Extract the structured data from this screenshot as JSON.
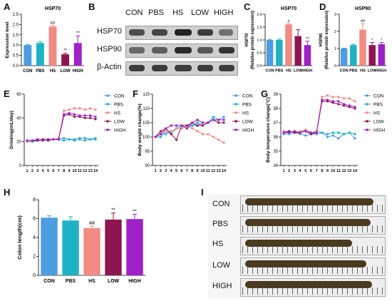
{
  "letters": {
    "A": "A",
    "B": "B",
    "C": "C",
    "D": "D",
    "E": "E",
    "F": "F",
    "G": "G",
    "H": "H",
    "I": "I"
  },
  "group_names": [
    "CON",
    "PBS",
    "HS",
    "LOW",
    "HIGH"
  ],
  "colors": {
    "CON": "#4d9de0",
    "PBS": "#1fb2c4",
    "HS": "#f28b82",
    "LOW": "#8e1650",
    "HIGH": "#a020c8"
  },
  "blot": {
    "columns": [
      "CON",
      "PBS",
      "HS",
      "LOW",
      "HIGH"
    ],
    "rows": [
      "HSP70",
      "HSP90",
      "β-Actin"
    ]
  },
  "photo": {
    "rows": [
      "CON",
      "PBS",
      "HS",
      "LOW",
      "HIGH"
    ]
  },
  "chart_data": [
    {
      "id": "A",
      "type": "bar",
      "title": "HSP70",
      "ylabel": "Expression level",
      "categories": [
        "CON",
        "PBS",
        "HS",
        "LOW",
        "HIGH"
      ],
      "values": [
        1.0,
        1.1,
        1.9,
        0.55,
        1.1
      ],
      "errors": [
        0.03,
        0.06,
        0.05,
        0.05,
        0.35
      ],
      "significance": [
        "",
        "",
        "##",
        "**",
        "**"
      ],
      "ylim": [
        0,
        2.5
      ],
      "yticks": [
        "0.0",
        "0.5",
        "1.0",
        "1.5",
        "2.0",
        "2.5"
      ]
    },
    {
      "id": "C",
      "type": "bar",
      "title": "HSP70",
      "ylabel": "(Relative protein expression)",
      "ylabel2": "HSP70",
      "categories": [
        "CON",
        "PBS",
        "HS",
        "LOW",
        "HIGH"
      ],
      "values": [
        1.0,
        1.0,
        1.6,
        1.15,
        0.8
      ],
      "errors": [
        0.02,
        0.03,
        0.03,
        0.25,
        0.15
      ],
      "significance": [
        "",
        "",
        "#",
        "",
        "**"
      ],
      "ylim": [
        0,
        2.0
      ],
      "yticks": [
        "0.0",
        "0.5",
        "1.0",
        "1.5",
        "2.0"
      ]
    },
    {
      "id": "D",
      "type": "bar",
      "title": "HSP90",
      "ylabel": "(Relative protein expression)",
      "ylabel2": "HSP90",
      "categories": [
        "CON",
        "PBS",
        "HS",
        "LOW",
        "HIGH"
      ],
      "values": [
        1.0,
        1.2,
        2.1,
        1.2,
        1.25
      ],
      "errors": [
        0.02,
        0.05,
        0.35,
        0.15,
        0.1
      ],
      "significance": [
        "",
        "",
        "##",
        "*",
        "*"
      ],
      "ylim": [
        0,
        3
      ],
      "yticks": [
        "0",
        "1",
        "2",
        "3"
      ]
    },
    {
      "id": "E",
      "type": "line",
      "ylabel": "Drinking(mL/day)",
      "x": [
        "1",
        "2",
        "3",
        "4",
        "5",
        "6",
        "7",
        "8",
        "9",
        "10",
        "11",
        "12",
        "13",
        "14"
      ],
      "ylim": [
        0,
        60
      ],
      "yticks": [
        "0",
        "20",
        "40",
        "60"
      ],
      "series": [
        {
          "name": "CON",
          "values": [
            21,
            21,
            21,
            21,
            22,
            22,
            22,
            21,
            22,
            21,
            22,
            21,
            22,
            22
          ]
        },
        {
          "name": "PBS",
          "values": [
            20,
            20,
            21,
            21,
            22,
            22,
            22,
            23,
            22,
            22,
            23,
            23,
            22,
            23
          ]
        },
        {
          "name": "HS",
          "values": [
            20,
            21,
            21,
            22,
            22,
            22,
            23,
            46,
            47,
            48,
            48,
            47,
            48,
            47
          ]
        },
        {
          "name": "LOW",
          "values": [
            21,
            21,
            21,
            22,
            21,
            22,
            22,
            42,
            43,
            41,
            41,
            40,
            40,
            39
          ]
        },
        {
          "name": "HIGH",
          "values": [
            21,
            21,
            22,
            21,
            22,
            22,
            22,
            43,
            44,
            43,
            42,
            42,
            42,
            41
          ]
        }
      ]
    },
    {
      "id": "F",
      "type": "line",
      "ylabel": "Body weight change(%)",
      "x": [
        "1",
        "2",
        "3",
        "4",
        "5",
        "6",
        "7",
        "8",
        "9",
        "10",
        "11",
        "12",
        "13",
        "14"
      ],
      "ylim": [
        90,
        115
      ],
      "yticks": [
        "90",
        "95",
        "100",
        "105",
        "110",
        "115"
      ],
      "series": [
        {
          "name": "CON",
          "values": [
            100,
            101,
            101,
            102,
            103,
            103,
            104,
            104,
            104,
            105,
            105,
            106,
            106,
            107
          ]
        },
        {
          "name": "PBS",
          "values": [
            100,
            100,
            102,
            101,
            103,
            104,
            103,
            104,
            105,
            104,
            105,
            107,
            106,
            106
          ]
        },
        {
          "name": "HS",
          "values": [
            100,
            101,
            102,
            102,
            103,
            103,
            104,
            103,
            102,
            101,
            101,
            100,
            99,
            98
          ]
        },
        {
          "name": "LOW",
          "values": [
            100,
            102,
            103,
            101,
            99,
            104,
            104,
            105,
            104,
            104,
            105,
            106,
            105,
            105
          ]
        },
        {
          "name": "HIGH",
          "values": [
            100,
            101,
            103,
            104,
            104,
            104,
            103,
            105,
            106,
            105,
            105,
            106,
            106,
            106
          ]
        }
      ]
    },
    {
      "id": "G",
      "type": "line",
      "ylabel": "Body temperature change(°C)",
      "x": [
        "1",
        "2",
        "3",
        "4",
        "5",
        "6",
        "7",
        "8",
        "9",
        "10",
        "11",
        "12",
        "13",
        "14"
      ],
      "ylim": [
        34,
        39
      ],
      "yticks": [
        "34",
        "35",
        "36",
        "37",
        "38",
        "39"
      ],
      "series": [
        {
          "name": "CON",
          "values": [
            36.2,
            36.2,
            36.3,
            36.2,
            36.1,
            36.2,
            36.2,
            36.3,
            36.0,
            36.1,
            35.9,
            36.2,
            36.3,
            35.9
          ]
        },
        {
          "name": "PBS",
          "values": [
            36.4,
            36.3,
            36.4,
            36.3,
            36.5,
            36.3,
            36.4,
            36.3,
            36.2,
            36.3,
            36.3,
            36.2,
            36.3,
            36.2
          ]
        },
        {
          "name": "HS",
          "values": [
            36.4,
            36.4,
            36.3,
            36.4,
            36.5,
            36.3,
            36.4,
            38.8,
            38.9,
            38.8,
            38.8,
            38.7,
            38.7,
            38.5
          ]
        },
        {
          "name": "LOW",
          "values": [
            36.3,
            36.4,
            36.3,
            36.3,
            36.4,
            36.2,
            36.3,
            38.5,
            38.5,
            38.4,
            38.3,
            38.2,
            38.1,
            38.0
          ]
        },
        {
          "name": "HIGH",
          "values": [
            36.3,
            36.3,
            36.4,
            36.3,
            36.4,
            36.3,
            36.3,
            38.6,
            38.6,
            38.5,
            38.5,
            38.3,
            38.2,
            38.1
          ]
        }
      ]
    },
    {
      "id": "H",
      "type": "bar",
      "ylabel": "Colon length(cm)",
      "categories": [
        "CON",
        "PBS",
        "HS",
        "LOW",
        "HIGH"
      ],
      "values": [
        6.1,
        5.8,
        5.0,
        5.9,
        5.95
      ],
      "errors": [
        0.2,
        0.4,
        0.2,
        0.7,
        0.5
      ],
      "significance": [
        "",
        "",
        "##",
        "**",
        "**"
      ],
      "ylim": [
        0,
        8
      ],
      "yticks": [
        "0",
        "2",
        "4",
        "6",
        "8"
      ]
    }
  ]
}
